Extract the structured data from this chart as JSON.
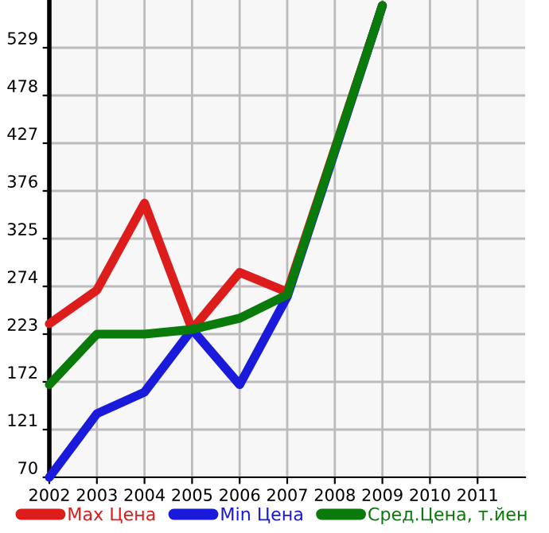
{
  "chart_data": {
    "type": "line",
    "x": [
      2002,
      2003,
      2004,
      2005,
      2006,
      2007,
      2008,
      2009
    ],
    "series": [
      {
        "name": "Max Цена",
        "color": "#dd1c1c",
        "values": [
          234,
          270,
          363,
          228,
          289,
          268,
          421,
          574
        ]
      },
      {
        "name": "Min Цена",
        "color": "#1a1adb",
        "values": [
          70,
          138,
          161,
          228,
          169,
          263,
          418,
          574
        ]
      },
      {
        "name": "Сред.Цена, т.йен",
        "color": "#0a7a0a",
        "values": [
          169,
          223,
          223,
          228,
          240,
          265,
          420,
          574
        ]
      }
    ],
    "xlim": [
      2002,
      2012
    ],
    "xticks": [
      2002,
      2003,
      2004,
      2005,
      2006,
      2007,
      2008,
      2009,
      2010,
      2011
    ],
    "ylim": [
      70,
      580
    ],
    "yticks": [
      70,
      121,
      172,
      223,
      274,
      325,
      376,
      427,
      478,
      529
    ],
    "grid": true,
    "legend": "bottom",
    "marker": "none",
    "line_style": "solid"
  }
}
